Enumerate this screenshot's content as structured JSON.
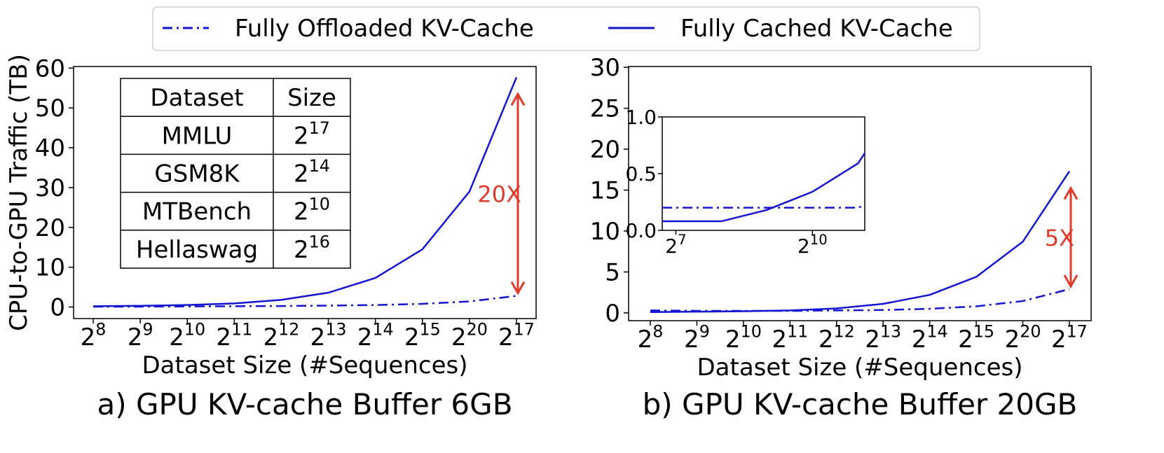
{
  "chart_data": [
    {
      "type": "line",
      "subtitle": "a) GPU KV-cache Buffer 6GB",
      "xlabel": "Dataset Size (#Sequences)",
      "ylabel": "CPU-to-GPU Traffic (TB)",
      "categories": [
        {
          "base": "2",
          "exp": "8"
        },
        {
          "base": "2",
          "exp": "9"
        },
        {
          "base": "2",
          "exp": "10"
        },
        {
          "base": "2",
          "exp": "11"
        },
        {
          "base": "2",
          "exp": "12"
        },
        {
          "base": "2",
          "exp": "13"
        },
        {
          "base": "2",
          "exp": "14"
        },
        {
          "base": "2",
          "exp": "15"
        },
        {
          "base": "2",
          "exp": "20"
        },
        {
          "base": "2",
          "exp": "17"
        }
      ],
      "ylim": [
        -2.9,
        60.4
      ],
      "yticks": [
        0,
        10,
        20,
        30,
        40,
        50,
        60
      ],
      "series": [
        {
          "name": "Fully Offloaded KV-Cache",
          "color": "#1414d2",
          "style": "dashdot",
          "values": [
            0.1,
            0.1,
            0.15,
            0.2,
            0.25,
            0.35,
            0.5,
            0.8,
            1.4,
            2.8
          ]
        },
        {
          "name": "Fully Cached KV-Cache",
          "color": "#1414d2",
          "style": "solid",
          "values": [
            0.2,
            0.3,
            0.5,
            0.9,
            1.8,
            3.6,
            7.3,
            14.5,
            29,
            57.7
          ]
        }
      ],
      "annotation": {
        "text": "20X",
        "color": "#e03a2a"
      },
      "table": {
        "header": [
          "Dataset",
          "Size"
        ],
        "rows": [
          [
            "MMLU",
            {
              "base": "2",
              "exp": "17"
            }
          ],
          [
            "GSM8K",
            {
              "base": "2",
              "exp": "14"
            }
          ],
          [
            "MTBench",
            {
              "base": "2",
              "exp": "10"
            }
          ],
          [
            "Hellaswag",
            {
              "base": "2",
              "exp": "16"
            }
          ]
        ]
      }
    },
    {
      "type": "line",
      "subtitle": "b) GPU KV-cache Buffer 20GB",
      "xlabel": "Dataset Size (#Sequences)",
      "categories": [
        {
          "base": "2",
          "exp": "8"
        },
        {
          "base": "2",
          "exp": "9"
        },
        {
          "base": "2",
          "exp": "10"
        },
        {
          "base": "2",
          "exp": "11"
        },
        {
          "base": "2",
          "exp": "12"
        },
        {
          "base": "2",
          "exp": "13"
        },
        {
          "base": "2",
          "exp": "14"
        },
        {
          "base": "2",
          "exp": "15"
        },
        {
          "base": "2",
          "exp": "20"
        },
        {
          "base": "2",
          "exp": "17"
        }
      ],
      "ylim": [
        -0.95,
        30.1
      ],
      "yticks": [
        0,
        5,
        10,
        15,
        20,
        25,
        30
      ],
      "series": [
        {
          "color": "#1414d2",
          "style": "dashdot",
          "values": [
            0.3,
            0.25,
            0.25,
            0.25,
            0.3,
            0.35,
            0.5,
            0.8,
            1.45,
            2.9
          ]
        },
        {
          "color": "#1414d2",
          "style": "solid",
          "values": [
            0.1,
            0.15,
            0.2,
            0.3,
            0.55,
            1.1,
            2.2,
            4.4,
            8.7,
            17.3
          ]
        }
      ],
      "annotation": {
        "text": "5X",
        "color": "#e03a2a"
      },
      "inset": {
        "x_log_base": 2,
        "xlim": [
          104,
          2272
        ],
        "xticks": [
          {
            "value": 128,
            "base": "2",
            "exp": "7"
          },
          {
            "value": 1024,
            "base": "2",
            "exp": "10"
          }
        ],
        "ylim": [
          0,
          1
        ],
        "yticks": [
          {
            "value": 0,
            "label": "0.0"
          },
          {
            "value": 0.5,
            "label": "0.5"
          },
          {
            "value": 1,
            "label": "1.0"
          }
        ],
        "series": [
          {
            "color": "#1414d2",
            "style": "dashdot",
            "x": [
              104,
              256,
              512,
              1024,
              2048,
              2272
            ],
            "values": [
              0.2,
              0.2,
              0.2,
              0.2,
              0.2,
              0.22
            ]
          },
          {
            "color": "#1414d2",
            "style": "solid",
            "x": [
              104,
              256,
              512,
              1024,
              2048,
              2272
            ],
            "values": [
              0.08,
              0.08,
              0.18,
              0.34,
              0.59,
              0.68
            ]
          }
        ]
      }
    }
  ]
}
